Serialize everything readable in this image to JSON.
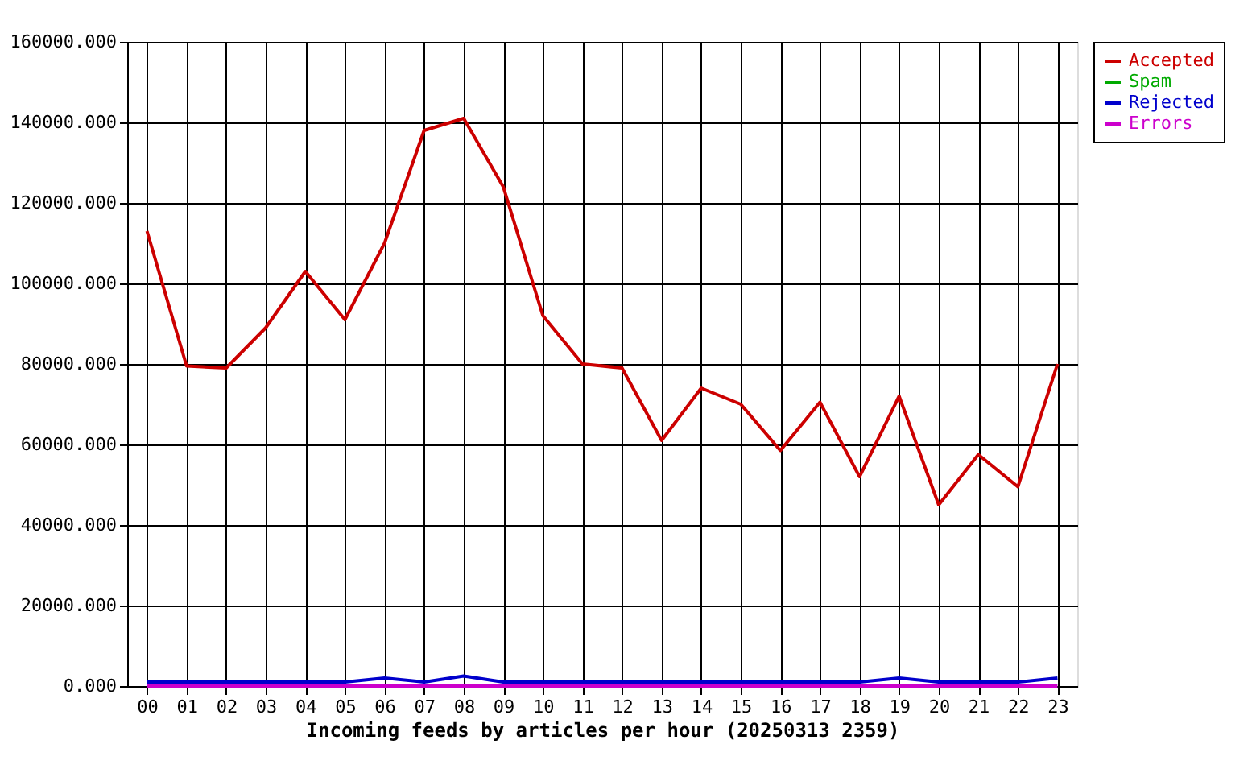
{
  "chart_data": {
    "type": "line",
    "xlabel": "Incoming feeds by articles per hour (20250313 2359)",
    "categories": [
      "00",
      "01",
      "02",
      "03",
      "04",
      "05",
      "06",
      "07",
      "08",
      "09",
      "10",
      "11",
      "12",
      "13",
      "14",
      "15",
      "16",
      "17",
      "18",
      "19",
      "20",
      "21",
      "22",
      "23"
    ],
    "series": [
      {
        "name": "Accepted",
        "color": "#cc0000",
        "values": [
          113000,
          79500,
          79000,
          89000,
          103000,
          91000,
          110000,
          138000,
          141000,
          124000,
          92000,
          80000,
          79000,
          61000,
          74000,
          70000,
          58500,
          70500,
          52000,
          72000,
          45000,
          57500,
          49500,
          80000
        ]
      },
      {
        "name": "Spam",
        "color": "#00aa00",
        "values": [
          null,
          null,
          null,
          null,
          null,
          null,
          null,
          null,
          null,
          null,
          null,
          null,
          null,
          null,
          null,
          null,
          null,
          null,
          null,
          null,
          null,
          null,
          null,
          null
        ]
      },
      {
        "name": "Rejected",
        "color": "#0000cc",
        "values": [
          1000,
          1000,
          1000,
          1000,
          1000,
          1000,
          2000,
          1000,
          2500,
          1000,
          1000,
          1000,
          1000,
          1000,
          1000,
          1000,
          1000,
          1000,
          1000,
          2000,
          1000,
          1000,
          1000,
          2000
        ]
      },
      {
        "name": "Errors",
        "color": "#cc00cc",
        "values": [
          0,
          0,
          0,
          0,
          0,
          0,
          0,
          0,
          0,
          0,
          0,
          0,
          0,
          0,
          0,
          0,
          0,
          0,
          0,
          0,
          0,
          0,
          0,
          0
        ]
      }
    ],
    "ylim": [
      0,
      160000
    ],
    "yticks": [
      {
        "value": 0,
        "label": "0.000"
      },
      {
        "value": 20000,
        "label": "20000.000"
      },
      {
        "value": 40000,
        "label": "40000.000"
      },
      {
        "value": 60000,
        "label": "60000.000"
      },
      {
        "value": 80000,
        "label": "80000.000"
      },
      {
        "value": 100000,
        "label": "100000.000"
      },
      {
        "value": 120000,
        "label": "120000.000"
      },
      {
        "value": 140000,
        "label": "140000.000"
      },
      {
        "value": 160000,
        "label": "160000.000"
      }
    ],
    "grid": true,
    "legend": "top right",
    "marker": "none",
    "line_style": "solid"
  }
}
